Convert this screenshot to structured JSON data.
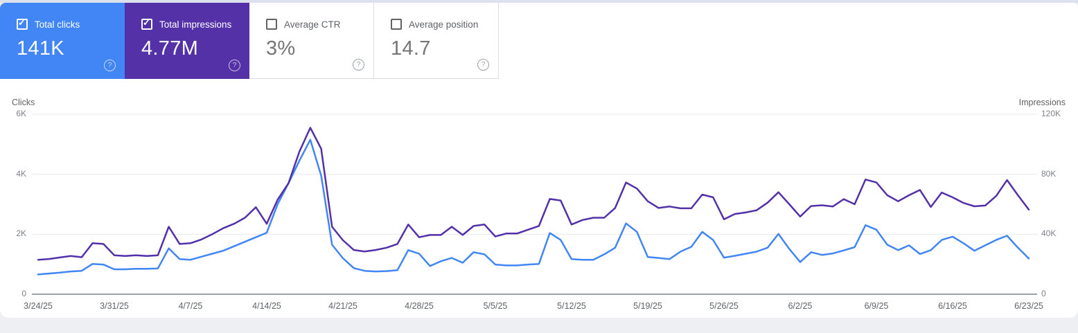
{
  "colors": {
    "clicks_blue": "#4285f4",
    "impressions_purple": "#5431a6",
    "impressions_line": "#5330a8",
    "gridline": "#e8e8e8",
    "axis_line": "#9aa0a6",
    "page_background": "#edeff3"
  },
  "metric_cards": [
    {
      "label": "Total clicks",
      "value": "141K",
      "checked": true,
      "help_icon": "help-circle-icon"
    },
    {
      "label": "Total impressions",
      "value": "4.77M",
      "checked": true,
      "help_icon": "help-circle-icon"
    },
    {
      "label": "Average CTR",
      "value": "3%",
      "checked": false,
      "help_icon": "help-circle-icon"
    },
    {
      "label": "Average position",
      "value": "14.7",
      "checked": false,
      "help_icon": "help-circle-icon"
    }
  ],
  "chart": {
    "left_axis_title": "Clicks",
    "right_axis_title": "Impressions"
  },
  "chart_data": {
    "type": "line",
    "grid": "horizontal",
    "legend": "none",
    "left_axis": {
      "title": "Clicks",
      "range": [
        0,
        6000
      ],
      "ticks": [
        0,
        2000,
        4000,
        6000
      ],
      "tick_labels": [
        "0",
        "2K",
        "4K",
        "6K"
      ]
    },
    "right_axis": {
      "title": "Impressions",
      "range": [
        0,
        120000
      ],
      "ticks": [
        0,
        40000,
        80000,
        120000
      ],
      "tick_labels": [
        "0",
        "40K",
        "80K",
        "120K"
      ]
    },
    "x_tick_labels": [
      "3/24/25",
      "3/31/25",
      "4/7/25",
      "4/14/25",
      "4/21/25",
      "4/28/25",
      "5/5/25",
      "5/12/25",
      "5/19/25",
      "5/26/25",
      "6/2/25",
      "6/9/25",
      "6/16/25",
      "6/23/25"
    ],
    "x": [
      "3/24/25",
      "3/25/25",
      "3/26/25",
      "3/27/25",
      "3/28/25",
      "3/29/25",
      "3/30/25",
      "3/31/25",
      "4/1/25",
      "4/2/25",
      "4/3/25",
      "4/4/25",
      "4/5/25",
      "4/6/25",
      "4/7/25",
      "4/8/25",
      "4/9/25",
      "4/10/25",
      "4/11/25",
      "4/12/25",
      "4/13/25",
      "4/14/25",
      "4/15/25",
      "4/16/25",
      "4/17/25",
      "4/18/25",
      "4/19/25",
      "4/20/25",
      "4/21/25",
      "4/22/25",
      "4/23/25",
      "4/24/25",
      "4/25/25",
      "4/26/25",
      "4/27/25",
      "4/28/25",
      "4/29/25",
      "4/30/25",
      "5/1/25",
      "5/2/25",
      "5/3/25",
      "5/4/25",
      "5/5/25",
      "5/6/25",
      "5/7/25",
      "5/8/25",
      "5/9/25",
      "5/10/25",
      "5/11/25",
      "5/12/25",
      "5/13/25",
      "5/14/25",
      "5/15/25",
      "5/16/25",
      "5/17/25",
      "5/18/25",
      "5/19/25",
      "5/20/25",
      "5/21/25",
      "5/22/25",
      "5/23/25",
      "5/24/25",
      "5/25/25",
      "5/26/25",
      "5/27/25",
      "5/28/25",
      "5/29/25",
      "5/30/25",
      "5/31/25",
      "6/1/25",
      "6/2/25",
      "6/3/25",
      "6/4/25",
      "6/5/25",
      "6/6/25",
      "6/7/25",
      "6/8/25",
      "6/9/25",
      "6/10/25",
      "6/11/25",
      "6/12/25",
      "6/13/25",
      "6/14/25",
      "6/15/25",
      "6/16/25",
      "6/17/25",
      "6/18/25",
      "6/19/25",
      "6/20/25",
      "6/21/25",
      "6/22/25",
      "6/23/25"
    ],
    "series": [
      {
        "name": "Clicks",
        "axis": "left",
        "color": "#4285f4",
        "values": [
          660,
          690,
          720,
          760,
          780,
          1010,
          990,
          830,
          830,
          850,
          850,
          860,
          1530,
          1170,
          1150,
          1250,
          1350,
          1450,
          1600,
          1750,
          1900,
          2050,
          3000,
          3700,
          4450,
          5150,
          3950,
          1650,
          1200,
          870,
          780,
          760,
          770,
          800,
          1470,
          1350,
          940,
          1100,
          1210,
          1050,
          1400,
          1330,
          990,
          960,
          960,
          990,
          1010,
          2040,
          1810,
          1170,
          1150,
          1150,
          1330,
          1550,
          2360,
          2080,
          1240,
          1210,
          1170,
          1420,
          1580,
          2080,
          1810,
          1220,
          1280,
          1350,
          1420,
          1550,
          2010,
          1510,
          1070,
          1400,
          1310,
          1360,
          1460,
          1570,
          2300,
          2150,
          1650,
          1470,
          1630,
          1340,
          1470,
          1810,
          1920,
          1700,
          1450,
          1630,
          1810,
          1950,
          1550,
          1190
        ]
      },
      {
        "name": "Impressions",
        "axis": "right",
        "color": "#5330a8",
        "values": [
          23000,
          23500,
          24500,
          25500,
          24700,
          34000,
          33500,
          26000,
          25500,
          26000,
          25500,
          26000,
          45000,
          33500,
          34000,
          36500,
          40000,
          44000,
          47000,
          51000,
          58000,
          47000,
          63000,
          74000,
          95000,
          111000,
          97000,
          45000,
          36000,
          29500,
          28500,
          29500,
          31000,
          33500,
          46500,
          38000,
          39500,
          39500,
          45000,
          39500,
          45500,
          46500,
          38500,
          40500,
          40500,
          43000,
          45500,
          63500,
          62500,
          46500,
          49500,
          51000,
          51000,
          57500,
          74500,
          70500,
          62000,
          57500,
          58500,
          57300,
          57300,
          66400,
          64600,
          50000,
          53500,
          54500,
          56000,
          61000,
          68000,
          60000,
          51800,
          58800,
          59300,
          58500,
          63400,
          60000,
          76500,
          74500,
          66000,
          62000,
          66000,
          69500,
          58200,
          67800,
          64600,
          60900,
          58600,
          59100,
          65500,
          76100,
          66000,
          56400
        ]
      }
    ]
  }
}
